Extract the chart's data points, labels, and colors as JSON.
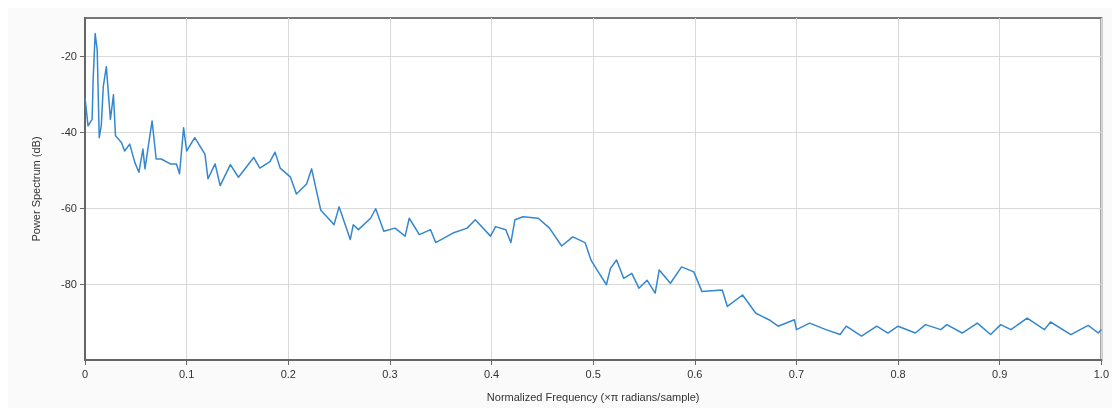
{
  "chart_data": {
    "type": "line",
    "xlabel": "Normalized Frequency (×π radians/sample)",
    "ylabel": "Power Spectrum (dB)",
    "xlim": [
      0,
      1
    ],
    "ylim": [
      -100,
      -10
    ],
    "xticks": [
      0,
      0.1,
      0.2,
      0.3,
      0.4,
      0.5,
      0.6,
      0.7,
      0.8,
      0.9,
      {
        "value": 1,
        "label": "1.0"
      }
    ],
    "yticks": [
      -20,
      -40,
      -60,
      -80
    ],
    "grid": true,
    "marker": "none",
    "line_style": "solid",
    "series": [
      {
        "color": "#3487cf",
        "x": [
          0,
          0.003,
          0.007,
          0.008,
          0.01,
          0.012,
          0.014,
          0.016,
          0.018,
          0.021,
          0.025,
          0.028,
          0.03,
          0.036,
          0.039,
          0.044,
          0.049,
          0.053,
          0.057,
          0.059,
          0.066,
          0.07,
          0.075,
          0.084,
          0.09,
          0.093,
          0.097,
          0.1,
          0.108,
          0.118,
          0.121,
          0.128,
          0.133,
          0.143,
          0.151,
          0.166,
          0.172,
          0.182,
          0.187,
          0.192,
          0.202,
          0.208,
          0.218,
          0.223,
          0.228,
          0.232,
          0.238,
          0.245,
          0.25,
          0.255,
          0.261,
          0.264,
          0.269,
          0.281,
          0.286,
          0.294,
          0.305,
          0.315,
          0.319,
          0.329,
          0.34,
          0.345,
          0.362,
          0.376,
          0.384,
          0.399,
          0.404,
          0.414,
          0.419,
          0.423,
          0.431,
          0.446,
          0.457,
          0.469,
          0.48,
          0.492,
          0.498,
          0.505,
          0.513,
          0.517,
          0.523,
          0.53,
          0.538,
          0.545,
          0.553,
          0.561,
          0.565,
          0.576,
          0.587,
          0.599,
          0.607,
          0.627,
          0.632,
          0.647,
          0.66,
          0.673,
          0.682,
          0.698,
          0.7,
          0.713,
          0.729,
          0.743,
          0.749,
          0.764,
          0.779,
          0.79,
          0.8,
          0.817,
          0.827,
          0.842,
          0.848,
          0.863,
          0.878,
          0.891,
          0.901,
          0.911,
          0.927,
          0.944,
          0.95,
          0.97,
          0.987,
          0.997,
          1
        ],
        "values": [
          -31,
          -38.4,
          -36.7,
          -26.3,
          -14.1,
          -18.4,
          -41.5,
          -38.4,
          -28,
          -22.8,
          -36.7,
          -30.2,
          -41,
          -42.8,
          -45,
          -43.2,
          -48,
          -50.6,
          -44.5,
          -49.7,
          -37.1,
          -47.1,
          -47.1,
          -48.4,
          -48.4,
          -51,
          -38.9,
          -45,
          -41.5,
          -45.8,
          -52.3,
          -48.4,
          -54.1,
          -48.6,
          -51.9,
          -46.7,
          -49.5,
          -47.8,
          -45.3,
          -49.5,
          -51.8,
          -56.3,
          -53.7,
          -49.7,
          -55.8,
          -60.6,
          -62.3,
          -64.4,
          -59.7,
          -63.6,
          -68.3,
          -64.4,
          -65.7,
          -62.7,
          -60.2,
          -66.1,
          -65.3,
          -67.4,
          -62.7,
          -67,
          -65.7,
          -69.1,
          -66.6,
          -65.3,
          -63.1,
          -67.4,
          -64.9,
          -65.7,
          -69.1,
          -63.1,
          -62.3,
          -62.7,
          -65.3,
          -70,
          -67.6,
          -69.1,
          -73.8,
          -76.8,
          -80.2,
          -75.9,
          -73.7,
          -78.5,
          -77.2,
          -81.1,
          -79,
          -82.4,
          -76.3,
          -79.8,
          -75.5,
          -76.8,
          -82,
          -81.6,
          -85.9,
          -82.9,
          -87.7,
          -89.4,
          -91.1,
          -89.4,
          -92,
          -90.3,
          -92,
          -93.3,
          -91.1,
          -93.7,
          -91.1,
          -92.9,
          -91.1,
          -92.9,
          -90.7,
          -92,
          -90.7,
          -92.9,
          -90.3,
          -93.3,
          -90.7,
          -92,
          -89,
          -92,
          -90,
          -93.3,
          -90.9,
          -92.9,
          -92
        ]
      }
    ]
  }
}
